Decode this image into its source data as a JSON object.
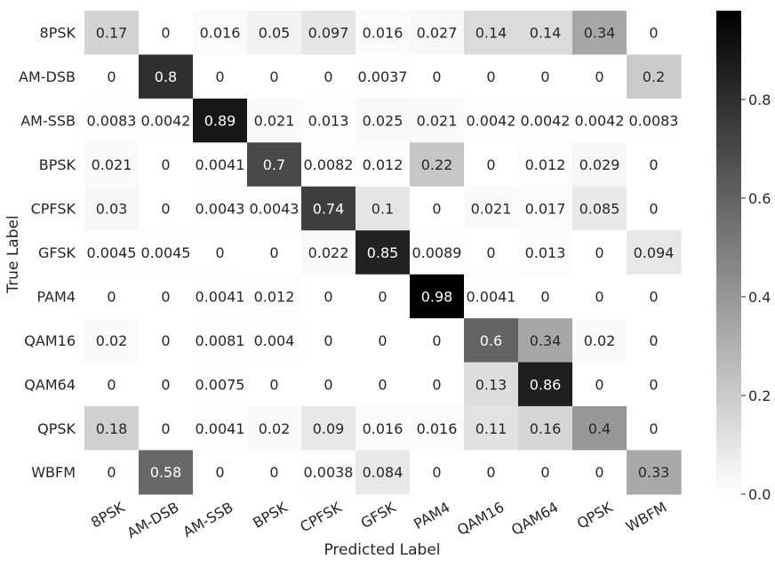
{
  "chart_data": {
    "type": "heatmap",
    "title": "",
    "xlabel": "Predicted Label",
    "ylabel": "True Label",
    "x_categories": [
      "8PSK",
      "AM-DSB",
      "AM-SSB",
      "BPSK",
      "CPFSK",
      "GFSK",
      "PAM4",
      "QAM16",
      "QAM64",
      "QPSK",
      "WBFM"
    ],
    "y_categories": [
      "8PSK",
      "AM-DSB",
      "AM-SSB",
      "BPSK",
      "CPFSK",
      "GFSK",
      "PAM4",
      "QAM16",
      "QAM64",
      "QPSK",
      "WBFM"
    ],
    "values": [
      [
        0.17,
        0,
        0.016,
        0.05,
        0.097,
        0.016,
        0.027,
        0.14,
        0.14,
        0.34,
        0
      ],
      [
        0,
        0.8,
        0,
        0,
        0,
        0.0037,
        0,
        0,
        0,
        0,
        0.2
      ],
      [
        0.0083,
        0.0042,
        0.89,
        0.021,
        0.013,
        0.025,
        0.021,
        0.0042,
        0.0042,
        0.0042,
        0.0083
      ],
      [
        0.021,
        0,
        0.0041,
        0.7,
        0.0082,
        0.012,
        0.22,
        0,
        0.012,
        0.029,
        0
      ],
      [
        0.03,
        0,
        0.0043,
        0.0043,
        0.74,
        0.1,
        0,
        0.021,
        0.017,
        0.085,
        0
      ],
      [
        0.0045,
        0.0045,
        0,
        0,
        0.022,
        0.85,
        0.0089,
        0,
        0.013,
        0,
        0.094
      ],
      [
        0,
        0,
        0.0041,
        0.012,
        0,
        0,
        0.98,
        0.0041,
        0,
        0,
        0
      ],
      [
        0.02,
        0,
        0.0081,
        0.004,
        0,
        0,
        0,
        0.6,
        0.34,
        0.02,
        0
      ],
      [
        0,
        0,
        0.0075,
        0,
        0,
        0,
        0,
        0.13,
        0.86,
        0,
        0
      ],
      [
        0.18,
        0,
        0.0041,
        0.02,
        0.09,
        0.016,
        0.016,
        0.11,
        0.16,
        0.4,
        0
      ],
      [
        0,
        0.58,
        0,
        0,
        0.0038,
        0.084,
        0,
        0,
        0,
        0,
        0.33
      ]
    ],
    "cell_labels": [
      [
        "0.17",
        "0",
        "0.016",
        "0.05",
        "0.097",
        "0.016",
        "0.027",
        "0.14",
        "0.14",
        "0.34",
        "0"
      ],
      [
        "0",
        "0.8",
        "0",
        "0",
        "0",
        "0.0037",
        "0",
        "0",
        "0",
        "0",
        "0.2"
      ],
      [
        "0.0083",
        "0.0042",
        "0.89",
        "0.021",
        "0.013",
        "0.025",
        "0.021",
        "0.0042",
        "0.0042",
        "0.0042",
        "0.0083"
      ],
      [
        "0.021",
        "0",
        "0.0041",
        "0.7",
        "0.0082",
        "0.012",
        "0.22",
        "0",
        "0.012",
        "0.029",
        "0"
      ],
      [
        "0.03",
        "0",
        "0.0043",
        "0.0043",
        "0.74",
        "0.1",
        "0",
        "0.021",
        "0.017",
        "0.085",
        "0"
      ],
      [
        "0.0045",
        "0.0045",
        "0",
        "0",
        "0.022",
        "0.85",
        "0.0089",
        "0",
        "0.013",
        "0",
        "0.094"
      ],
      [
        "0",
        "0",
        "0.0041",
        "0.012",
        "0",
        "0",
        "0.98",
        "0.0041",
        "0",
        "0",
        "0"
      ],
      [
        "0.02",
        "0",
        "0.0081",
        "0.004",
        "0",
        "0",
        "0",
        "0.6",
        "0.34",
        "0.02",
        "0"
      ],
      [
        "0",
        "0",
        "0.0075",
        "0",
        "0",
        "0",
        "0",
        "0.13",
        "0.86",
        "0",
        "0"
      ],
      [
        "0.18",
        "0",
        "0.0041",
        "0.02",
        "0.09",
        "0.016",
        "0.016",
        "0.11",
        "0.16",
        "0.4",
        "0"
      ],
      [
        "0",
        "0.58",
        "0",
        "0",
        "0.0038",
        "0.084",
        "0",
        "0",
        "0",
        "0",
        "0.33"
      ]
    ],
    "colorbar": {
      "range": [
        0,
        0.98
      ],
      "ticks": [
        0.0,
        0.2,
        0.4,
        0.6,
        0.8
      ],
      "tick_labels": [
        "0.0",
        "0.2",
        "0.4",
        "0.6",
        "0.8"
      ],
      "colormap": "grayscale, white to black",
      "low_color": "#ffffff",
      "high_color": "#000000"
    },
    "text_colors": {
      "dark_cell": "#ffffff",
      "light_cell": "#262626"
    },
    "grid": false,
    "legend": "colorbar-right"
  }
}
